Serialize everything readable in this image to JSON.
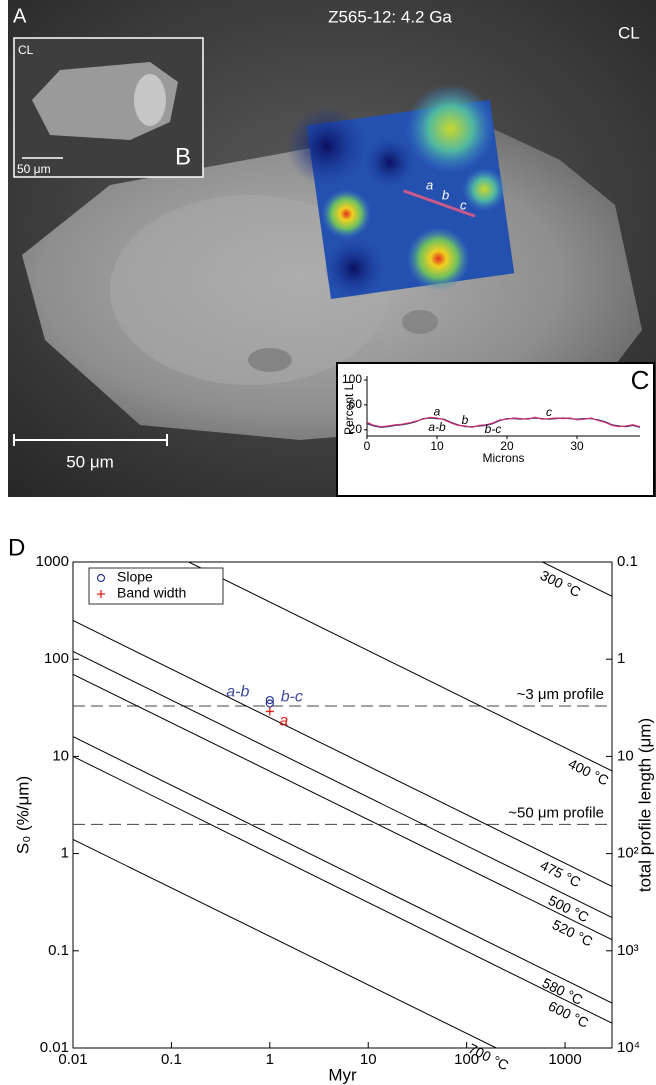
{
  "image_panel": {
    "letter": "A",
    "title": "Z565-12: 4.2 Ga",
    "mode": "CL",
    "scale_bar": "50 μm",
    "profile_labels": [
      "a",
      "b",
      "c"
    ],
    "inset": {
      "letter": "B",
      "mode": "CL",
      "scale_bar": "50 μm"
    }
  },
  "chart_data": [
    {
      "type": "line",
      "letter": "C",
      "xlabel": "Microns",
      "ylabel": "Percent Li",
      "xlim": [
        0,
        39
      ],
      "ylim": [
        10,
        100
      ],
      "xticks": [
        0,
        10,
        20,
        30
      ],
      "yticks": [
        20,
        60,
        100
      ],
      "x": [
        0,
        1,
        2,
        3,
        4,
        5,
        6,
        7,
        8,
        9,
        10,
        11,
        12,
        13,
        14,
        15,
        16,
        17,
        18,
        19,
        20,
        21,
        22,
        23,
        24,
        25,
        26,
        27,
        28,
        29,
        30,
        31,
        32,
        33,
        34,
        35,
        36,
        37,
        38,
        39
      ],
      "series": [
        {
          "color": "#2b2f7a",
          "values": [
            30,
            26,
            24,
            25,
            27,
            28,
            30,
            33,
            38,
            39,
            38,
            37,
            32,
            28,
            25,
            25,
            26,
            27,
            30,
            35,
            38,
            38,
            37,
            38,
            39,
            38,
            37,
            38,
            39,
            38,
            37,
            38,
            38,
            36,
            33,
            28,
            26,
            25,
            27,
            24
          ]
        },
        {
          "color": "#d0306a",
          "values": [
            32,
            27,
            25,
            26,
            28,
            29,
            31,
            34,
            37,
            40,
            39,
            36,
            31,
            27,
            26,
            24,
            27,
            28,
            31,
            36,
            37,
            39,
            38,
            37,
            40,
            37,
            38,
            39,
            38,
            39,
            36,
            37,
            39,
            35,
            32,
            27,
            25,
            26,
            28,
            25
          ]
        }
      ],
      "annotations": [
        "a",
        "a-b",
        "b",
        "b-c",
        "c"
      ]
    },
    {
      "type": "line",
      "letter": "D",
      "xlabel": "Myr",
      "ylabel": "S₀ (%/μm)",
      "y2label": "total profile length (μm)",
      "xscale": "log",
      "yscale": "log",
      "xlim": [
        0.01,
        3000
      ],
      "ylim": [
        0.01,
        1000
      ],
      "y2lim": [
        10000,
        0.1
      ],
      "xticks": [
        0.01,
        0.1,
        1,
        10,
        100,
        1000
      ],
      "yticks": [
        0.01,
        0.1,
        1,
        10,
        100,
        1000
      ],
      "y2ticks": [
        0.1,
        1,
        10,
        {
          "value": 100,
          "label": "10²"
        },
        {
          "value": 1000,
          "label": "10³"
        },
        {
          "value": 10000,
          "label": "10⁴"
        }
      ],
      "legend": "upper left",
      "series": [
        {
          "name": "300 °C",
          "color": "#000000",
          "x": [
            590,
            3000
          ],
          "values": [
            1000,
            444
          ]
        },
        {
          "name": "400 °C",
          "color": "#000000",
          "x": [
            0.15,
            3000
          ],
          "values": [
            1000,
            7.1
          ]
        },
        {
          "name": "475 °C",
          "color": "#000000",
          "x": [
            0.01,
            3000
          ],
          "values": [
            250,
            0.46
          ]
        },
        {
          "name": "500 °C",
          "color": "#000000",
          "x": [
            0.01,
            3000
          ],
          "values": [
            120,
            0.22
          ]
        },
        {
          "name": "520 °C",
          "color": "#000000",
          "x": [
            0.01,
            3000
          ],
          "values": [
            70,
            0.13
          ]
        },
        {
          "name": "580 °C",
          "color": "#000000",
          "x": [
            0.01,
            3000
          ],
          "values": [
            16,
            0.029
          ]
        },
        {
          "name": "600 °C",
          "color": "#000000",
          "x": [
            0.01,
            3000
          ],
          "values": [
            10,
            0.018
          ]
        },
        {
          "name": "700 °C",
          "color": "#000000",
          "x": [
            0.01,
            200
          ],
          "values": [
            1.4,
            0.01
          ]
        },
        {
          "name": "Slope",
          "kind": "scatter",
          "marker": "o",
          "color": "#2b3990",
          "x": [
            1,
            1
          ],
          "values": [
            38,
            35
          ]
        },
        {
          "name": "Band width",
          "kind": "scatter",
          "marker": "+",
          "color": "#e0201b",
          "x": [
            1
          ],
          "values": [
            29
          ]
        }
      ],
      "hlines": [
        {
          "value": 33,
          "label": "~3 μm profile"
        },
        {
          "value": 2,
          "label": "~50 μm profile"
        }
      ],
      "annotations": [
        {
          "text": "a-b",
          "color": "#3b4ba0"
        },
        {
          "text": "b-c",
          "color": "#3b4ba0"
        },
        {
          "text": "a",
          "color": "#e0201b"
        }
      ]
    }
  ]
}
